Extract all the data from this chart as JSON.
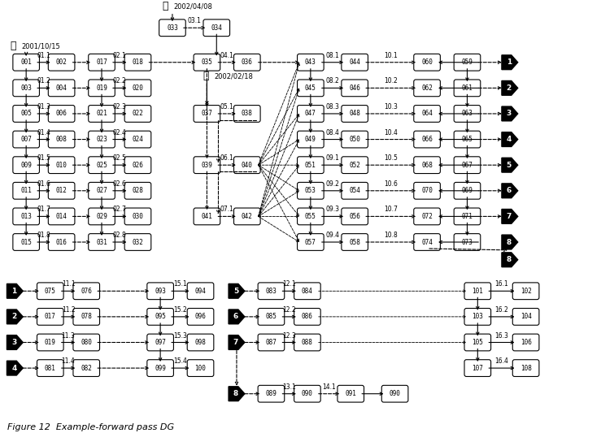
{
  "title": "Figure 12  Example-forward pass DG",
  "bg": "#ffffff"
}
